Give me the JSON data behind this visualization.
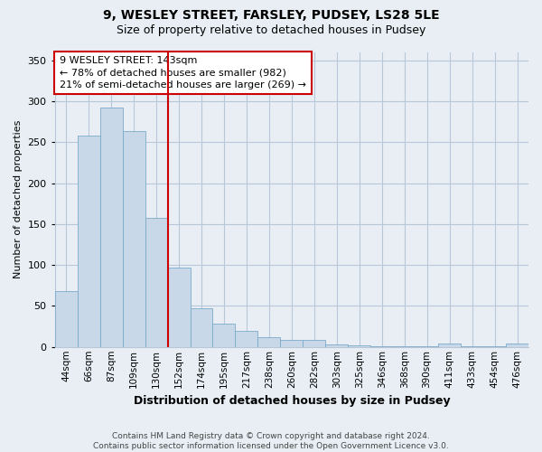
{
  "title": "9, WESLEY STREET, FARSLEY, PUDSEY, LS28 5LE",
  "subtitle": "Size of property relative to detached houses in Pudsey",
  "xlabel": "Distribution of detached houses by size in Pudsey",
  "ylabel": "Number of detached properties",
  "footer_line1": "Contains HM Land Registry data © Crown copyright and database right 2024.",
  "footer_line2": "Contains public sector information licensed under the Open Government Licence v3.0.",
  "annotation_line1": "9 WESLEY STREET: 143sqm",
  "annotation_line2": "← 78% of detached houses are smaller (982)",
  "annotation_line3": "21% of semi-detached houses are larger (269) →",
  "bar_color": "#c8d8e8",
  "bar_edgecolor": "#7aaac8",
  "redline_color": "#cc0000",
  "annotation_box_edgecolor": "#cc0000",
  "categories": [
    "44sqm",
    "66sqm",
    "87sqm",
    "109sqm",
    "130sqm",
    "152sqm",
    "174sqm",
    "195sqm",
    "217sqm",
    "238sqm",
    "260sqm",
    "282sqm",
    "303sqm",
    "325sqm",
    "346sqm",
    "368sqm",
    "390sqm",
    "411sqm",
    "433sqm",
    "454sqm",
    "476sqm"
  ],
  "values": [
    68,
    258,
    292,
    263,
    157,
    97,
    47,
    28,
    20,
    12,
    9,
    9,
    3,
    2,
    1,
    1,
    1,
    4,
    1,
    1,
    4
  ],
  "redline_index": 4.5,
  "ylim": [
    0,
    360
  ],
  "yticks": [
    0,
    50,
    100,
    150,
    200,
    250,
    300,
    350
  ],
  "background_color": "#e8eef4",
  "plot_background": "#e8eef4",
  "grid_color": "#b8c8d8",
  "title_fontsize": 10,
  "subtitle_fontsize": 9,
  "ylabel_fontsize": 8,
  "xlabel_fontsize": 9,
  "tick_fontsize": 8,
  "annotation_fontsize": 8
}
